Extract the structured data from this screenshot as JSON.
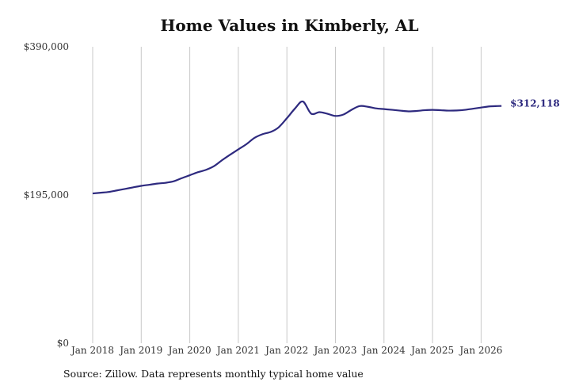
{
  "chart_data": {
    "type": "line",
    "title": "Home Values in Kimberly, AL",
    "xlabel": "",
    "ylabel": "",
    "ylim": [
      0,
      390000
    ],
    "y_ticks": [
      {
        "value": 0,
        "label": "$0"
      },
      {
        "value": 195000,
        "label": "$195,000"
      },
      {
        "value": 390000,
        "label": "$390,000"
      }
    ],
    "x_ticks": [
      {
        "value": 2018,
        "label": "Jan 2018"
      },
      {
        "value": 2019,
        "label": "Jan 2019"
      },
      {
        "value": 2020,
        "label": "Jan 2020"
      },
      {
        "value": 2021,
        "label": "Jan 2021"
      },
      {
        "value": 2022,
        "label": "Jan 2022"
      },
      {
        "value": 2023,
        "label": "Jan 2023"
      },
      {
        "value": 2024,
        "label": "Jan 2024"
      },
      {
        "value": 2025,
        "label": "Jan 2025"
      },
      {
        "value": 2026,
        "label": "Jan 2026"
      }
    ],
    "xlim": [
      2018,
      2026.42
    ],
    "grid": "vertical",
    "line_color": "#2e2a7f",
    "series": [
      {
        "name": "",
        "x": [
          2018.0,
          2018.17,
          2018.33,
          2018.5,
          2018.67,
          2018.83,
          2019.0,
          2019.17,
          2019.33,
          2019.5,
          2019.67,
          2019.83,
          2020.0,
          2020.17,
          2020.33,
          2020.5,
          2020.67,
          2020.83,
          2021.0,
          2021.17,
          2021.33,
          2021.5,
          2021.67,
          2021.83,
          2022.0,
          2022.17,
          2022.33,
          2022.5,
          2022.67,
          2022.83,
          2023.0,
          2023.17,
          2023.33,
          2023.5,
          2023.67,
          2023.83,
          2024.0,
          2024.17,
          2024.33,
          2024.5,
          2024.67,
          2024.83,
          2025.0,
          2025.17,
          2025.33,
          2025.5,
          2025.67,
          2025.83,
          2026.0,
          2026.17,
          2026.33,
          2026.42
        ],
        "values": [
          197000,
          198000,
          199000,
          201000,
          203000,
          205000,
          207000,
          208500,
          210000,
          211000,
          213000,
          217000,
          221000,
          225000,
          228000,
          233000,
          241000,
          248000,
          255000,
          262000,
          270000,
          275000,
          278000,
          284000,
          296000,
          309000,
          318000,
          302000,
          304000,
          302000,
          299000,
          301000,
          307000,
          312000,
          311000,
          309000,
          308000,
          307000,
          306000,
          305000,
          305500,
          306500,
          307000,
          306500,
          306000,
          306200,
          307000,
          308500,
          310000,
          311500,
          312000,
          312118
        ]
      }
    ],
    "end_label": "$312,118"
  },
  "source_note": "Source: Zillow. Data represents monthly typical home value"
}
